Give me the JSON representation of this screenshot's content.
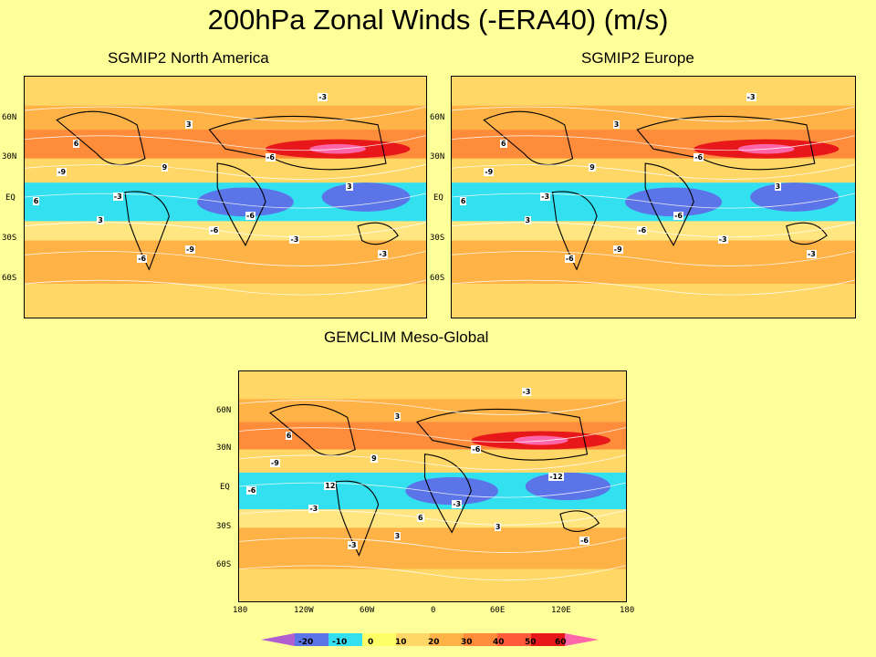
{
  "title": "200hPa Zonal Winds (-ERA40) (m/s)",
  "panels": [
    {
      "label": "SGMIP2 North America",
      "lat_labels": [
        "60N",
        "30N",
        "EQ",
        "30S",
        "60S"
      ],
      "contour_labels": [
        "-3",
        "3",
        "-6",
        "6",
        "-9",
        "9",
        "-3",
        "3",
        "-6",
        "-3",
        "6",
        "3",
        "-6",
        "-9",
        "-3",
        "-6"
      ]
    },
    {
      "label": "SGMIP2 Europe",
      "lat_labels": [
        "60N",
        "30N",
        "EQ",
        "30S",
        "60S"
      ],
      "contour_labels": [
        "-3",
        "3",
        "-6",
        "6",
        "-9",
        "9",
        "-3",
        "3",
        "-6",
        "-3",
        "6",
        "3",
        "-6",
        "-9",
        "-3",
        "-6"
      ]
    },
    {
      "label": "GEMCLIM Meso-Global",
      "lat_labels": [
        "60N",
        "30N",
        "EQ",
        "30S",
        "60S"
      ],
      "lon_labels": [
        "180",
        "120W",
        "60W",
        "0",
        "60E",
        "120E",
        "180"
      ],
      "contour_labels": [
        "-3",
        "3",
        "-6",
        "6",
        "-9",
        "9",
        "12",
        "-12",
        "-3",
        "3",
        "-6",
        "-3",
        "6",
        "3",
        "-6",
        "-3"
      ]
    }
  ],
  "colorbar": {
    "ticks": [
      "-20",
      "-10",
      "0",
      "10",
      "20",
      "30",
      "40",
      "50",
      "60"
    ],
    "colors": [
      "#b05fd0",
      "#5b74e8",
      "#33e0f0",
      "#ffff66",
      "#ffd766",
      "#ffb347",
      "#ff8c3a",
      "#ff5a3a",
      "#e8181a",
      "#ff66aa"
    ]
  }
}
